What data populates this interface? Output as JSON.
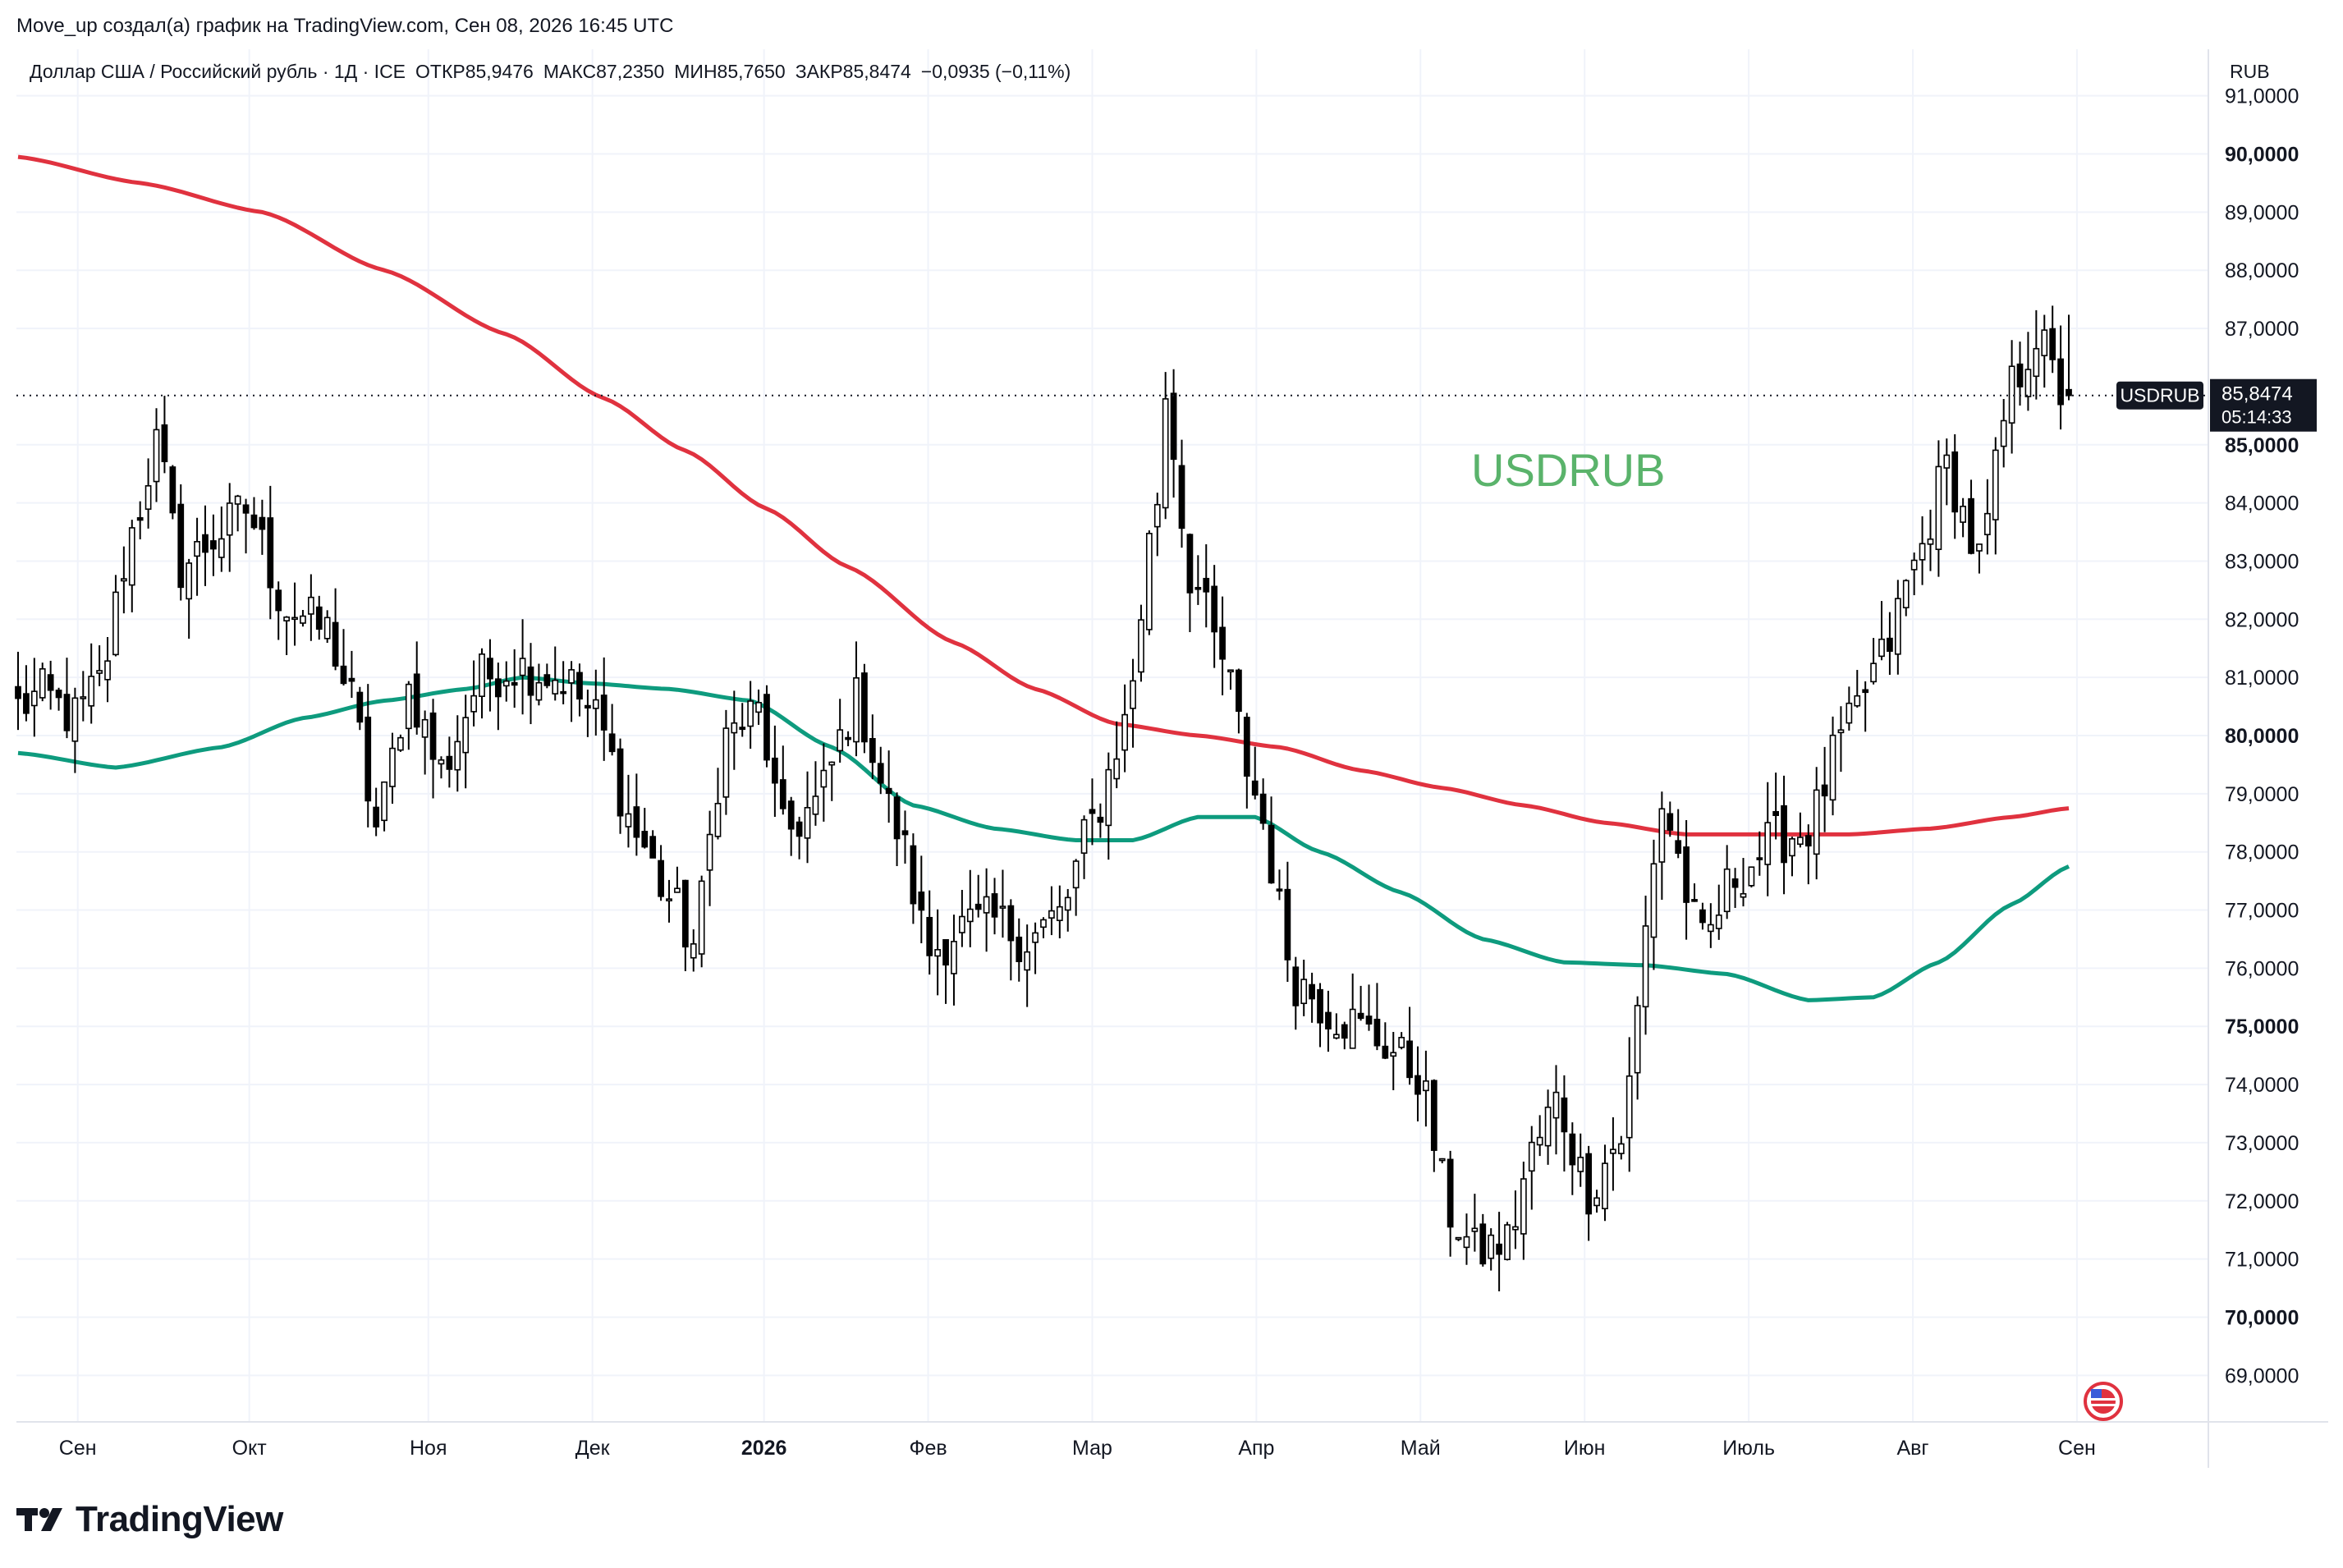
{
  "caption": "Move_up создал(а) график на TradingView.com, Сен 08, 2026 16:45 UTC",
  "legend": {
    "symbol_desc": "Доллар США / Российский рубль · 1Д · ICE",
    "open": "ОТКР85,9476",
    "high": "МАКС87,2350",
    "low": "МИН85,7650",
    "close": "ЗАКР85,8474",
    "change": "−0,0935 (−0,11%)"
  },
  "watermark": "USDRUB",
  "currency": "RUB",
  "brand": "TradingView",
  "last_price": {
    "symbol": "USDRUB",
    "price": "85,8474",
    "countdown": "05:14:33"
  },
  "colors": {
    "ma_long": "#e0323f",
    "ma_short": "#0e9b7e",
    "candle": "#000000",
    "watermark": "#5ab36b",
    "price_tag": "#131722"
  },
  "chart_data": {
    "type": "candlestick",
    "ylim": [
      68.2,
      91.8
    ],
    "yticks": [
      "91,0000",
      "90,0000",
      "89,0000",
      "88,0000",
      "87,0000",
      "85,0000",
      "84,0000",
      "83,0000",
      "82,0000",
      "81,0000",
      "80,0000",
      "79,0000",
      "78,0000",
      "77,0000",
      "76,0000",
      "75,0000",
      "74,0000",
      "73,0000",
      "72,0000",
      "71,0000",
      "70,0000",
      "69,0000"
    ],
    "ytick_values": [
      91,
      90,
      89,
      88,
      87,
      85,
      84,
      83,
      82,
      81,
      80,
      79,
      78,
      77,
      76,
      75,
      74,
      73,
      72,
      71,
      70,
      69
    ],
    "ytick_bold": [
      90,
      85,
      80,
      75,
      70
    ],
    "xticks": [
      "Сен",
      "Окт",
      "Ноя",
      "Дек",
      "2026",
      "Фев",
      "Мар",
      "Апр",
      "Май",
      "Июн",
      "Июль",
      "Авг",
      "Сен"
    ],
    "xtick_bold": [
      "2026"
    ],
    "close_anchors": [
      [
        0,
        80.5
      ],
      [
        3,
        80.7
      ],
      [
        7,
        80.3
      ],
      [
        10,
        80.9
      ],
      [
        14,
        83.5
      ],
      [
        17,
        85.0
      ],
      [
        20,
        82.9
      ],
      [
        25,
        83.5
      ],
      [
        28,
        83.9
      ],
      [
        33,
        82.2
      ],
      [
        38,
        81.8
      ],
      [
        41,
        80.6
      ],
      [
        44,
        78.4
      ],
      [
        48,
        80.8
      ],
      [
        52,
        79.4
      ],
      [
        57,
        81.0
      ],
      [
        61,
        81.2
      ],
      [
        67,
        81.0
      ],
      [
        71,
        80.3
      ],
      [
        76,
        78.3
      ],
      [
        80,
        77.2
      ],
      [
        83,
        76.4
      ],
      [
        87,
        80.0
      ],
      [
        91,
        80.4
      ],
      [
        94,
        78.3
      ],
      [
        98,
        78.8
      ],
      [
        103,
        80.6
      ],
      [
        108,
        78.4
      ],
      [
        112,
        76.3
      ],
      [
        116,
        76.7
      ],
      [
        120,
        76.8
      ],
      [
        124,
        76.5
      ],
      [
        128,
        76.9
      ],
      [
        132,
        78.5
      ],
      [
        136,
        80.2
      ],
      [
        140,
        84.1
      ],
      [
        141,
        85.9
      ],
      [
        144,
        82.8
      ],
      [
        148,
        81.3
      ],
      [
        152,
        79.0
      ],
      [
        157,
        75.8
      ],
      [
        162,
        75.2
      ],
      [
        167,
        74.8
      ],
      [
        172,
        74.2
      ],
      [
        176,
        71.8
      ],
      [
        179,
        71.1
      ],
      [
        183,
        71.3
      ],
      [
        186,
        72.8
      ],
      [
        189,
        73.7
      ],
      [
        193,
        72.2
      ],
      [
        197,
        73.1
      ],
      [
        202,
        78.8
      ],
      [
        207,
        76.4
      ],
      [
        211,
        77.6
      ],
      [
        216,
        78.2
      ],
      [
        220,
        78.4
      ],
      [
        224,
        79.9
      ],
      [
        229,
        81.3
      ],
      [
        233,
        82.9
      ],
      [
        237,
        84.6
      ],
      [
        241,
        83.0
      ],
      [
        245,
        86.0
      ],
      [
        248,
        86.9
      ],
      [
        251,
        85.9
      ],
      [
        252,
        85.85
      ]
    ],
    "ma_long": [
      [
        0,
        89.95
      ],
      [
        15,
        89.5
      ],
      [
        30,
        89.0
      ],
      [
        45,
        88.0
      ],
      [
        60,
        86.9
      ],
      [
        72,
        85.8
      ],
      [
        82,
        84.9
      ],
      [
        92,
        83.9
      ],
      [
        102,
        82.9
      ],
      [
        115,
        81.6
      ],
      [
        125,
        80.8
      ],
      [
        135,
        80.2
      ],
      [
        145,
        80.0
      ],
      [
        155,
        79.8
      ],
      [
        165,
        79.4
      ],
      [
        175,
        79.1
      ],
      [
        185,
        78.8
      ],
      [
        195,
        78.5
      ],
      [
        205,
        78.3
      ],
      [
        215,
        78.3
      ],
      [
        225,
        78.3
      ],
      [
        235,
        78.4
      ],
      [
        245,
        78.6
      ],
      [
        252,
        78.75
      ]
    ],
    "ma_short": [
      [
        0,
        79.7
      ],
      [
        12,
        79.45
      ],
      [
        25,
        79.8
      ],
      [
        35,
        80.3
      ],
      [
        45,
        80.6
      ],
      [
        55,
        80.8
      ],
      [
        62,
        81.0
      ],
      [
        70,
        80.9
      ],
      [
        80,
        80.8
      ],
      [
        90,
        80.6
      ],
      [
        100,
        79.8
      ],
      [
        110,
        78.8
      ],
      [
        120,
        78.4
      ],
      [
        130,
        78.2
      ],
      [
        137,
        78.2
      ],
      [
        145,
        78.6
      ],
      [
        152,
        78.6
      ],
      [
        160,
        78.0
      ],
      [
        170,
        77.3
      ],
      [
        180,
        76.5
      ],
      [
        190,
        76.1
      ],
      [
        200,
        76.05
      ],
      [
        210,
        75.9
      ],
      [
        220,
        75.45
      ],
      [
        228,
        75.5
      ],
      [
        236,
        76.1
      ],
      [
        245,
        77.1
      ],
      [
        252,
        77.75
      ]
    ],
    "n_bars": 253
  }
}
